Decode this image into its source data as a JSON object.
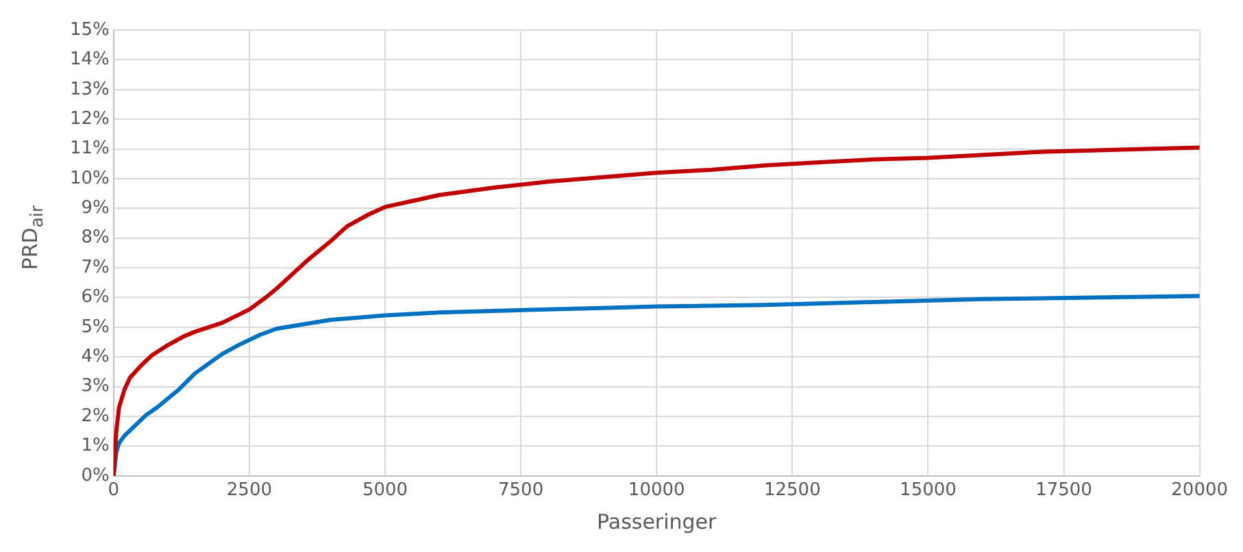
{
  "chart_data": {
    "type": "line",
    "xlabel": "Passeringer",
    "ylabel": "PRD$_{air}$",
    "xlim": [
      0,
      20000
    ],
    "xticks": [
      0,
      2500,
      5000,
      7500,
      10000,
      12500,
      15000,
      17500,
      20000
    ],
    "ylim": [
      0,
      15
    ],
    "yticks": [
      {
        "value": 0,
        "label": "0%"
      },
      {
        "value": 1,
        "label": "1%"
      },
      {
        "value": 2,
        "label": "2%"
      },
      {
        "value": 3,
        "label": "3%"
      },
      {
        "value": 4,
        "label": "4%"
      },
      {
        "value": 5,
        "label": "5%"
      },
      {
        "value": 6,
        "label": "6%"
      },
      {
        "value": 7,
        "label": "7%"
      },
      {
        "value": 8,
        "label": "8%"
      },
      {
        "value": 9,
        "label": "9%"
      },
      {
        "value": 10,
        "label": "10%"
      },
      {
        "value": 11,
        "label": "11%"
      },
      {
        "value": 12,
        "label": "12%"
      },
      {
        "value": 13,
        "label": "13%"
      },
      {
        "value": 14,
        "label": "14%"
      },
      {
        "value": 15,
        "label": "15%"
      }
    ],
    "grid": true,
    "legend": false,
    "marker": "none",
    "line_style": "solid",
    "series": [
      {
        "color": "#c00000",
        "x": [
          0,
          50,
          100,
          200,
          300,
          500,
          700,
          1000,
          1300,
          1500,
          2000,
          2500,
          2800,
          3000,
          3300,
          3600,
          4000,
          4300,
          4700,
          5000,
          5500,
          6000,
          7000,
          8000,
          9000,
          10000,
          11000,
          12000,
          13000,
          14000,
          15000,
          16000,
          17000,
          18000,
          19000,
          20000
        ],
        "values": [
          0,
          1.5,
          2.3,
          2.9,
          3.3,
          3.7,
          4.05,
          4.4,
          4.7,
          4.85,
          5.15,
          5.6,
          6,
          6.3,
          6.8,
          7.3,
          7.9,
          8.4,
          8.8,
          9.05,
          9.25,
          9.45,
          9.7,
          9.9,
          10.05,
          10.2,
          10.3,
          10.45,
          10.55,
          10.65,
          10.7,
          10.8,
          10.9,
          10.95,
          11,
          11.05
        ]
      },
      {
        "color": "#0070c0",
        "x": [
          0,
          50,
          100,
          200,
          400,
          600,
          800,
          1200,
          1500,
          2000,
          2300,
          2700,
          3000,
          3500,
          4000,
          5000,
          6000,
          7000,
          8000,
          9000,
          10000,
          12000,
          14000,
          16000,
          18000,
          20000
        ],
        "values": [
          0,
          0.8,
          1.1,
          1.35,
          1.7,
          2.05,
          2.3,
          2.9,
          3.45,
          4.1,
          4.4,
          4.75,
          4.95,
          5.1,
          5.25,
          5.4,
          5.5,
          5.55,
          5.6,
          5.65,
          5.7,
          5.75,
          5.85,
          5.95,
          6,
          6.05
        ]
      }
    ]
  }
}
